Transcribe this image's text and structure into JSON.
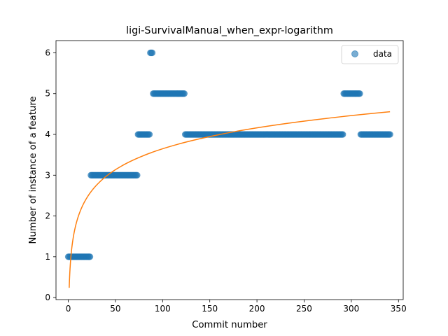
{
  "chart_data": {
    "type": "scatter",
    "title": "ligi-SurvivalManual_when_expr-logarithm",
    "xlabel": "Commit number",
    "ylabel": "Number of instance of a feature",
    "xlim": [
      -13,
      355
    ],
    "ylim": [
      -0.05,
      6.3
    ],
    "xticks": [
      0,
      50,
      100,
      150,
      200,
      250,
      300,
      350
    ],
    "yticks": [
      0,
      1,
      2,
      3,
      4,
      5,
      6
    ],
    "grid": false,
    "legend": {
      "placement": "top-right",
      "entries": [
        "data"
      ]
    },
    "colors": {
      "data": "#1f77b4",
      "fit": "#ff7f0e"
    },
    "series": [
      {
        "name": "data",
        "kind": "scatter",
        "segments": [
          {
            "x_start": 0,
            "x_end": 23,
            "y": 1
          },
          {
            "x_start": 24,
            "x_end": 73,
            "y": 3
          },
          {
            "x_start": 74,
            "x_end": 86,
            "y": 4
          },
          {
            "x_start": 87,
            "x_end": 89,
            "y": 6
          },
          {
            "x_start": 90,
            "x_end": 123,
            "y": 5
          },
          {
            "x_start": 124,
            "x_end": 291,
            "y": 4
          },
          {
            "x_start": 292,
            "x_end": 309,
            "y": 5
          },
          {
            "x_start": 310,
            "x_end": 341,
            "y": 4
          }
        ]
      },
      {
        "kind": "line",
        "model": "logarithmic",
        "a": 0.24,
        "b": 0.74,
        "x_range": [
          1,
          341
        ]
      }
    ]
  }
}
